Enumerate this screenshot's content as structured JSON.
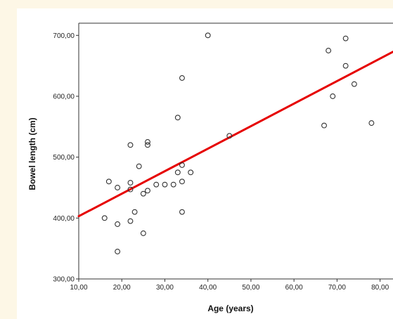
{
  "chart_data": {
    "type": "scatter",
    "title": "",
    "xlabel": "Age (years)",
    "ylabel": "Bowel length (cm)",
    "xlim": [
      10,
      83
    ],
    "ylim": [
      300,
      720
    ],
    "x_ticks": [
      "10,00",
      "20,00",
      "30,00",
      "40,00",
      "50,00",
      "60,00",
      "70,00",
      "80,00"
    ],
    "y_ticks": [
      "300,00",
      "400,00",
      "500,00",
      "600,00",
      "700,00"
    ],
    "grid": false,
    "legend": "none",
    "series": [
      {
        "points": [
          [
            16,
            400
          ],
          [
            17,
            460
          ],
          [
            19,
            450
          ],
          [
            19,
            390
          ],
          [
            19,
            345
          ],
          [
            22,
            520
          ],
          [
            22,
            458
          ],
          [
            22,
            447
          ],
          [
            22,
            395
          ],
          [
            23,
            410
          ],
          [
            24,
            485
          ],
          [
            25,
            440
          ],
          [
            25,
            375
          ],
          [
            26,
            525
          ],
          [
            26,
            520
          ],
          [
            26,
            445
          ],
          [
            28,
            455
          ],
          [
            30,
            455
          ],
          [
            32,
            455
          ],
          [
            33,
            565
          ],
          [
            33,
            475
          ],
          [
            34,
            630
          ],
          [
            34,
            487
          ],
          [
            34,
            460
          ],
          [
            34,
            410
          ],
          [
            36,
            475
          ],
          [
            40,
            700
          ],
          [
            45,
            535
          ],
          [
            67,
            552
          ],
          [
            68,
            675
          ],
          [
            69,
            600
          ],
          [
            72,
            695
          ],
          [
            72,
            650
          ],
          [
            74,
            620
          ],
          [
            78,
            556
          ]
        ]
      }
    ],
    "trendline": {
      "x": [
        10,
        83
      ],
      "y": [
        403,
        673
      ],
      "color": "#e60000"
    },
    "marker_color": "#333333"
  }
}
